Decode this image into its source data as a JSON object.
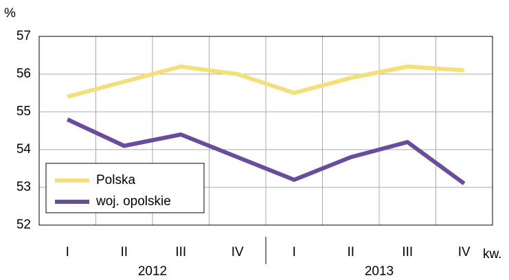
{
  "chart_data": {
    "type": "line",
    "y_unit": "%",
    "x_unit": "kw.",
    "categories": [
      "I",
      "II",
      "III",
      "IV",
      "I",
      "II",
      "III",
      "IV"
    ],
    "groups": [
      "2012",
      "2013"
    ],
    "series": [
      {
        "name": "Polska",
        "color": "#f2e07a",
        "values": [
          55.4,
          55.8,
          56.2,
          56.0,
          55.5,
          55.9,
          56.2,
          56.1
        ]
      },
      {
        "name": "woj. opolskie",
        "color": "#6a4c9c",
        "values": [
          54.8,
          54.1,
          54.4,
          53.8,
          53.2,
          53.8,
          54.2,
          53.1
        ]
      }
    ],
    "ylim": [
      52,
      57
    ],
    "yticks": [
      52,
      53,
      54,
      55,
      56,
      57
    ],
    "grid": true,
    "legend": "lower left"
  }
}
